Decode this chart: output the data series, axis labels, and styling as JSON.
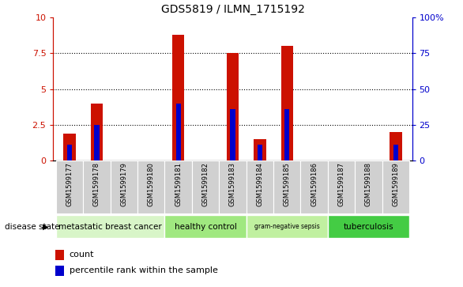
{
  "title": "GDS5819 / ILMN_1715192",
  "samples": [
    "GSM1599177",
    "GSM1599178",
    "GSM1599179",
    "GSM1599180",
    "GSM1599181",
    "GSM1599182",
    "GSM1599183",
    "GSM1599184",
    "GSM1599185",
    "GSM1599186",
    "GSM1599187",
    "GSM1599188",
    "GSM1599189"
  ],
  "count_values": [
    1.9,
    4.0,
    0.0,
    0.0,
    8.8,
    0.0,
    7.5,
    1.5,
    8.0,
    0.0,
    0.0,
    0.0,
    2.0
  ],
  "percentile_values": [
    1.1,
    2.5,
    0.0,
    0.0,
    4.0,
    0.0,
    3.6,
    1.1,
    3.6,
    0.0,
    0.0,
    0.0,
    1.1
  ],
  "ylim": [
    0,
    10
  ],
  "yticks": [
    0,
    2.5,
    5.0,
    7.5,
    10
  ],
  "ytick_labels_left": [
    "0",
    "2.5",
    "5",
    "7.5",
    "10"
  ],
  "ytick_labels_right": [
    "0",
    "25",
    "50",
    "75",
    "100%"
  ],
  "groups": [
    {
      "label": "metastatic breast cancer",
      "start": 0,
      "end": 4,
      "color": "#d8f5c8"
    },
    {
      "label": "healthy control",
      "start": 4,
      "end": 7,
      "color": "#a0e880"
    },
    {
      "label": "gram-negative sepsis",
      "start": 7,
      "end": 10,
      "color": "#c0f0a0"
    },
    {
      "label": "tuberculosis",
      "start": 10,
      "end": 13,
      "color": "#44cc44"
    }
  ],
  "bar_color": "#cc1100",
  "percentile_color": "#0000cc",
  "bar_width": 0.45,
  "percentile_bar_width": 0.18,
  "tick_bg_color": "#d0d0d0",
  "left_axis_color": "#cc1100",
  "right_axis_color": "#0000cc",
  "disease_state_label": "disease state",
  "legend_count": "count",
  "legend_percentile": "percentile rank within the sample"
}
